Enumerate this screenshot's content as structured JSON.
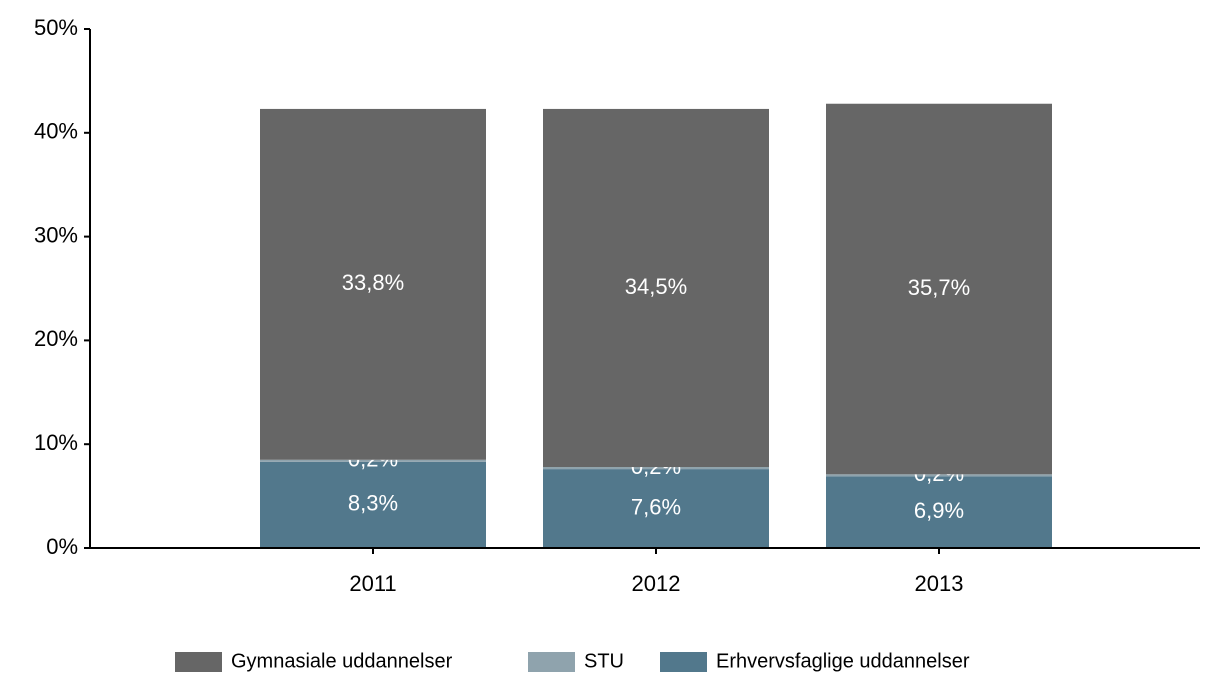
{
  "chart_data": {
    "type": "stacked_bar",
    "categories": [
      "2011",
      "2012",
      "2013"
    ],
    "series": [
      {
        "name": "Gymnasiale uddannelser",
        "color": "#666666",
        "values": [
          33.8,
          34.5,
          35.7
        ],
        "value_labels": [
          "33,8%",
          "34,5%",
          "35,7%"
        ]
      },
      {
        "name": "STU",
        "color": "#8fa3ad",
        "values": [
          0.2,
          0.2,
          0.2
        ],
        "value_labels": [
          "0,2%",
          "0,2%",
          "0,2%"
        ]
      },
      {
        "name": "Erhvervsfaglige uddannelser",
        "color": "#52788c",
        "values": [
          8.3,
          7.6,
          6.9
        ],
        "value_labels": [
          "8,3%",
          "7,6%",
          "6,9%"
        ]
      }
    ],
    "ylim": [
      0,
      50
    ],
    "yticks": [
      {
        "value": 0,
        "label": "0%"
      },
      {
        "value": 10,
        "label": "10%"
      },
      {
        "value": 20,
        "label": "20%"
      },
      {
        "value": 30,
        "label": "30%"
      },
      {
        "value": 40,
        "label": "40%"
      },
      {
        "value": 50,
        "label": "50%"
      }
    ],
    "legend": "bottom"
  }
}
